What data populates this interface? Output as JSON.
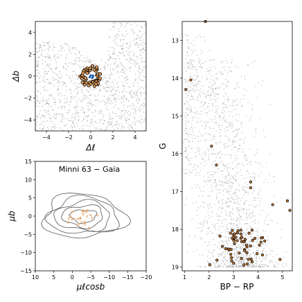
{
  "chart_data": [
    {
      "type": "scatter",
      "panel": "sky-position",
      "title": "",
      "xlabel": "Δℓ",
      "ylabel": "Δb",
      "xlim": [
        -5,
        5
      ],
      "ylim": [
        -5,
        5
      ],
      "x_ticks": [
        -4,
        -2,
        0,
        2,
        4
      ],
      "x_tick_labels": [
        "−4",
        "−2",
        "0",
        "2",
        "4"
      ],
      "y_ticks": [
        -4,
        -2,
        0,
        2,
        4
      ],
      "y_tick_labels": [
        "−4",
        "−2",
        "0",
        "2",
        "4"
      ],
      "field_star_count": 1500,
      "cluster_member_count": 60,
      "cluster_center": [
        0,
        0
      ],
      "cluster_radius": 1.0,
      "field_color": "#9a9a9a",
      "member_color": "#e8a05a",
      "center_marker_color": "#1f5fae"
    },
    {
      "type": "scatter",
      "panel": "proper-motion",
      "title": "Minni 63  −  Gaia",
      "xlabel": "μℓcosb",
      "ylabel": "μb",
      "xlim": [
        10,
        -20
      ],
      "ylim": [
        -15,
        15
      ],
      "x_ticks": [
        10,
        5,
        0,
        -5,
        -10,
        -15,
        -20
      ],
      "x_tick_labels": [
        "10",
        "5",
        "0",
        "−5",
        "−10",
        "−15",
        "−20"
      ],
      "y_ticks": [
        -15,
        -10,
        -5,
        0,
        5,
        10,
        15
      ],
      "y_tick_labels": [
        "−15",
        "−10",
        "−5",
        "0",
        "5",
        "10",
        "15"
      ],
      "contour_center": [
        -3,
        0
      ],
      "member_color": "#e8a05a",
      "contour_color": "#555555"
    },
    {
      "type": "scatter",
      "panel": "cmd",
      "title": "",
      "xlabel": "BP − RP",
      "ylabel": "G",
      "xlim": [
        0.9,
        5.4
      ],
      "ylim": [
        19.1,
        12.5
      ],
      "x_ticks": [
        1,
        2,
        3,
        4,
        5
      ],
      "x_tick_labels": [
        "1",
        "2",
        "3",
        "4",
        "5"
      ],
      "y_ticks": [
        13,
        14,
        15,
        16,
        17,
        18,
        19
      ],
      "y_tick_labels": [
        "13",
        "14",
        "15",
        "16",
        "17",
        "18",
        "19"
      ],
      "field_star_count": 1800,
      "member_count": 70,
      "field_color": "#9a9a9a",
      "member_color": "#c8782a"
    }
  ]
}
